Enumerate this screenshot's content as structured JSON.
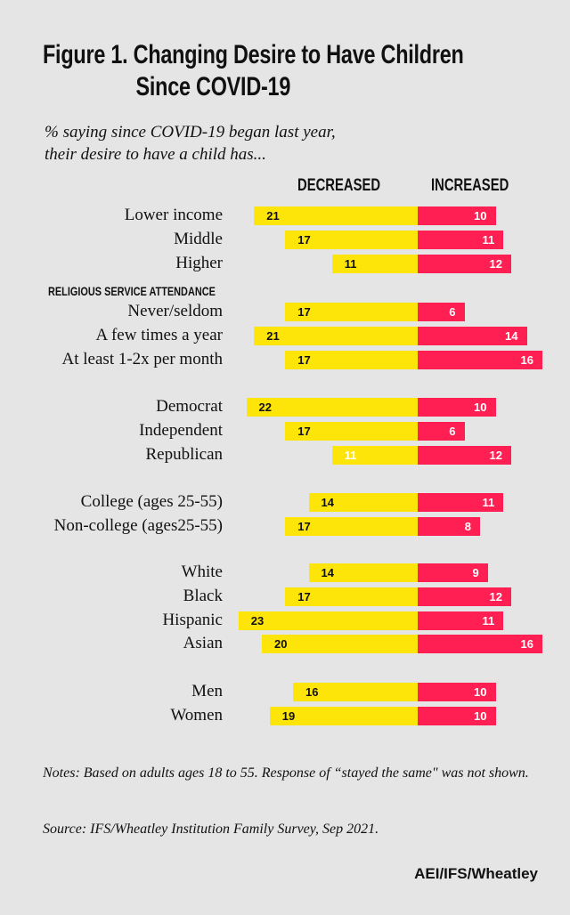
{
  "header": {
    "title_line1": "Figure 1. Changing Desire to Have Children",
    "title_line2": "Since COVID-19",
    "subtitle_line1": "% saying since COVID-19 began last year,",
    "subtitle_line2": "their desire to have a child has..."
  },
  "colors": {
    "decreased": "#fde50a",
    "increased": "#ff1f52",
    "background": "#e5e5e5"
  },
  "chart_data": {
    "type": "bar",
    "orientation": "horizontal-diverging",
    "title": "Figure 1. Changing Desire to Have Children Since COVID-19",
    "subtitle": "% saying since COVID-19 began last year, their desire to have a child has...",
    "series": [
      {
        "name": "DECREASED",
        "color": "#fde50a",
        "direction": "left"
      },
      {
        "name": "INCREASED",
        "color": "#ff1f52",
        "direction": "right"
      }
    ],
    "groups": [
      {
        "heading": "",
        "rows": [
          {
            "label": "Lower income",
            "decreased": 21,
            "increased": 10
          },
          {
            "label": "Middle",
            "decreased": 17,
            "increased": 11
          },
          {
            "label": "Higher",
            "decreased": 11,
            "increased": 12
          }
        ]
      },
      {
        "heading": "RELIGIOUS SERVICE ATTENDANCE",
        "rows": [
          {
            "label": "Never/seldom",
            "decreased": 17,
            "increased": 6
          },
          {
            "label": "A few times a year",
            "decreased": 21,
            "increased": 14
          },
          {
            "label": "At least 1-2x per month",
            "decreased": 17,
            "increased": 16
          }
        ]
      },
      {
        "heading": "",
        "rows": [
          {
            "label": "Democrat",
            "decreased": 22,
            "increased": 10
          },
          {
            "label": "Independent",
            "decreased": 17,
            "increased": 6
          },
          {
            "label": "Republican",
            "decreased": 11,
            "increased": 12,
            "dec_label_white": true
          }
        ]
      },
      {
        "heading": "",
        "rows": [
          {
            "label": "College (ages 25-55)",
            "decreased": 14,
            "increased": 11
          },
          {
            "label": "Non-college (ages25-55)",
            "decreased": 17,
            "increased": 8
          }
        ]
      },
      {
        "heading": "",
        "rows": [
          {
            "label": "White",
            "decreased": 14,
            "increased": 9
          },
          {
            "label": "Black",
            "decreased": 17,
            "increased": 12
          },
          {
            "label": "Hispanic",
            "decreased": 23,
            "increased": 11
          },
          {
            "label": "Asian",
            "decreased": 20,
            "increased": 16
          }
        ]
      },
      {
        "heading": "",
        "rows": [
          {
            "label": "Men",
            "decreased": 16,
            "increased": 10
          },
          {
            "label": "Women",
            "decreased": 19,
            "increased": 10
          }
        ]
      }
    ],
    "xlabel": "",
    "ylabel": "",
    "grid": false,
    "legend": "top (column headers)"
  },
  "footer": {
    "notes": "Notes: Based on adults ages 18 to 55. Response of “stayed the same\" was not shown.",
    "source": "Source: IFS/Wheatley Institution Family Survey, Sep 2021.",
    "credit": "AEI/IFS/Wheatley"
  }
}
